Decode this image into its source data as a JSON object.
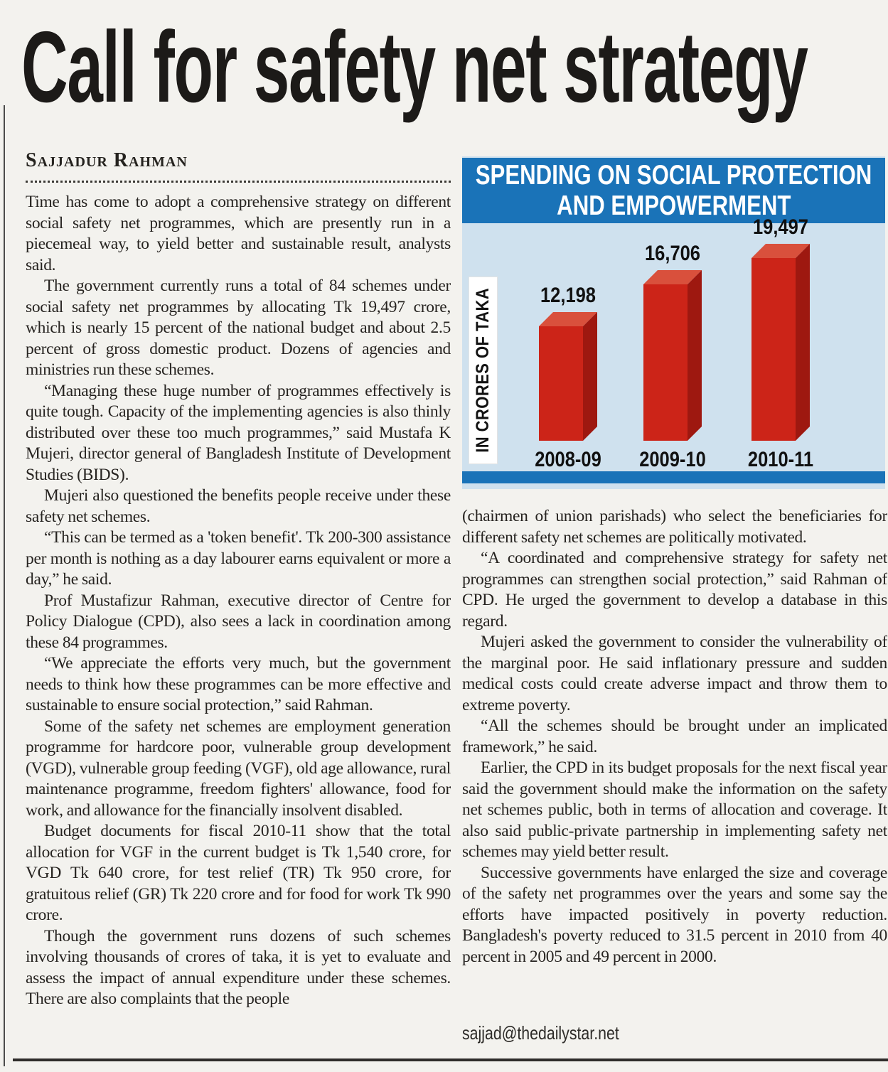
{
  "page": {
    "background": "#f3f2ee"
  },
  "article": {
    "headline": "Call for safety net strategy",
    "byline": "Sajjadur Rahman",
    "email": "sajjad@thedailystar.net",
    "left_column": [
      "Time has come to adopt a comprehensive strategy on different social safety net programmes, which are presently run in a piecemeal way, to yield better and sustainable result, analysts said.",
      "The government currently runs a total of 84 schemes under social safety net programmes by allocating Tk 19,497 crore, which is nearly 15 percent of the national budget and about 2.5 percent of gross domestic product. Dozens of agencies and ministries run these schemes.",
      "“Managing these huge number of programmes effectively is quite tough. Capacity of the implementing agencies is also thinly distributed over these too much programmes,” said Mustafa K Mujeri, director general of Bangladesh Institute of Development Studies (BIDS).",
      "Mujeri also questioned the benefits people receive under these safety net schemes.",
      "“This can be termed as a 'token benefit'. Tk 200-300 assistance per month is nothing as a day labourer earns equivalent or more a day,” he said.",
      "Prof Mustafizur Rahman, executive director of Centre for Policy Dialogue (CPD), also sees a lack in coordination among these 84 programmes.",
      "“We appreciate the efforts very much, but the government needs to think how these programmes can be more effective and sustainable to ensure social protection,” said Rahman.",
      "Some of the safety net schemes are employment generation programme for hardcore poor, vulnerable group development (VGD), vulnerable group feeding (VGF), old age allowance, rural maintenance programme, freedom fighters' allowance, food for work, and allowance for the financially insolvent disabled.",
      "Budget documents for fiscal 2010-11 show that the total allocation for VGF in the current budget is Tk 1,540 crore, for VGD Tk 640 crore, for test relief (TR) Tk 950 crore, for gratuitous relief (GR) Tk 220 crore and for food for work Tk 990 crore.",
      "Though the government runs dozens of such schemes involving thousands of crores of taka, it is yet to evaluate and assess the impact of annual expenditure under these schemes. There are also complaints that the people"
    ],
    "right_column": [
      "(chairmen of union parishads) who select the beneficiaries for different safety net schemes are politically motivated.",
      "“A coordinated and comprehensive strategy for safety net programmes can strengthen social protection,” said Rahman of CPD. He urged the government to develop a database in this regard.",
      "Mujeri asked the government to consider the vulnerability of the marginal poor. He said inflationary pressure and sudden medical costs could create adverse impact and throw them to extreme poverty.",
      "“All the schemes should be brought under an implicated framework,” he said.",
      "Earlier, the CPD in its budget proposals for the next fiscal year said the government should make the information on the safety net schemes public, both in terms of allocation and coverage. It also said public-private partnership in implementing safety net schemes may yield better result.",
      "Successive governments have enlarged the size and coverage of the safety net programmes over the years and some say the efforts have impacted positively in poverty reduction. Bangladesh's poverty reduced to 31.5 percent in 2010 from 40 percent in 2005 and 49 percent in 2000."
    ]
  },
  "chart_data": {
    "type": "bar",
    "title": "SPENDING ON SOCIAL PROTECTION AND EMPOWERMENT",
    "title_line1": "SPENDING ON SOCIAL PROTECTION",
    "title_line2": "AND EMPOWERMENT",
    "ylabel": "IN CRORES OF TAKA",
    "xlabel": "",
    "categories": [
      "2008-09",
      "2009-10",
      "2010-11"
    ],
    "values": [
      12198,
      16706,
      19497
    ],
    "value_labels": [
      "12,198",
      "16,706",
      "19,497"
    ],
    "ylim": [
      0,
      20000
    ],
    "grid": false,
    "legend": "none",
    "bar_style": "3d-extruded",
    "colors": {
      "title_band": "#1a73b8",
      "panel_bg": "#cfe1ee",
      "bar_front": "#cc2418",
      "bar_side": "#9e1810",
      "bar_top": "#d9503c",
      "label_color": "#111111"
    }
  }
}
